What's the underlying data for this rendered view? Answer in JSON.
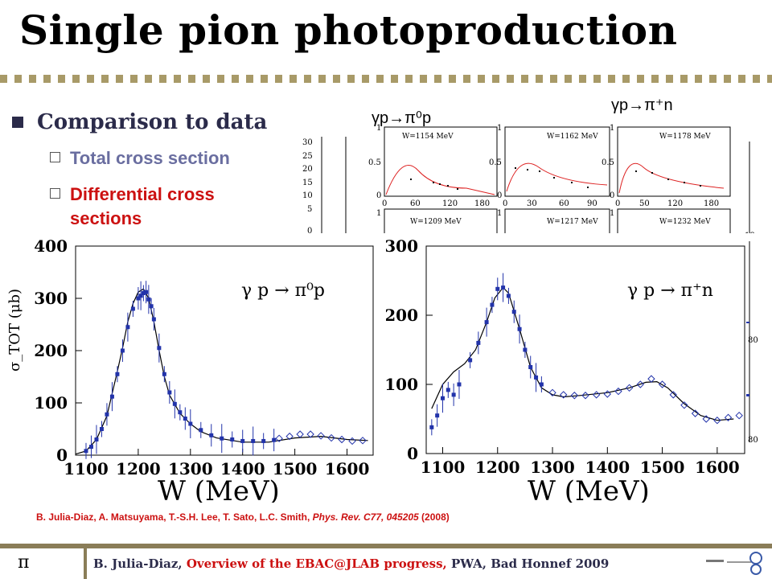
{
  "slide": {
    "title": "Single pion photoproduction",
    "bullet": "Comparison to data",
    "sub1": "Total cross section",
    "sub2_line1": "Differential cross",
    "sub2_line2": "sections",
    "inset_label_left": "γp→π⁰p",
    "inset_label_right": "γp→π⁺n",
    "citation_authors": "B. Julia-Diaz, A. Matsuyama, T.-S.H. Lee, T. Sato, L.C. Smith, ",
    "citation_journal": "Phys. Rev. C77, 045205",
    "citation_year": " (2008)",
    "footer_symbol": "π",
    "footer_author": "B. Julia-Diaz, ",
    "footer_talk": "Overview of the EBAC@JLAB progress, ",
    "footer_conf": "PWA, Bad Honnef 2009",
    "colors": {
      "data": "#2233aa",
      "accent": "#cc1111",
      "theory": "#000000",
      "band": "#8a7d58"
    }
  },
  "chart_data": [
    {
      "type": "scatter",
      "title": "",
      "reaction_label": "γ p → π⁰p",
      "xlabel": "W (MeV)",
      "ylabel": "σ_TOT (μb)",
      "xlim": [
        1080,
        1650
      ],
      "ylim": [
        0,
        400
      ],
      "xticks": [
        1100,
        1200,
        1300,
        1400,
        1500,
        1600
      ],
      "yticks": [
        0,
        100,
        200,
        300,
        400
      ],
      "series": [
        {
          "kind": "model_curve",
          "x": [
            1080,
            1100,
            1120,
            1140,
            1160,
            1170,
            1180,
            1190,
            1200,
            1210,
            1220,
            1230,
            1240,
            1250,
            1260,
            1280,
            1300,
            1320,
            1350,
            1400,
            1450,
            1500,
            1550,
            1600,
            1640
          ],
          "y": [
            2,
            8,
            30,
            75,
            160,
            205,
            255,
            290,
            312,
            318,
            300,
            255,
            200,
            150,
            115,
            80,
            60,
            45,
            33,
            25,
            25,
            33,
            36,
            30,
            28
          ]
        },
        {
          "kind": "data_points",
          "x": [
            1100,
            1110,
            1120,
            1130,
            1140,
            1150,
            1160,
            1170,
            1180,
            1190,
            1200,
            1205,
            1210,
            1215,
            1220,
            1225,
            1230,
            1240,
            1250,
            1260,
            1270,
            1280,
            1290,
            1300,
            1320,
            1340,
            1360,
            1380,
            1400,
            1420,
            1440,
            1460
          ],
          "y": [
            8,
            16,
            30,
            50,
            78,
            112,
            155,
            200,
            245,
            280,
            300,
            305,
            310,
            312,
            298,
            285,
            260,
            205,
            155,
            120,
            98,
            82,
            70,
            60,
            48,
            38,
            32,
            30,
            27,
            27,
            27,
            29
          ]
        },
        {
          "kind": "data_open_diamonds",
          "x": [
            1470,
            1490,
            1510,
            1530,
            1550,
            1570,
            1590,
            1610,
            1630
          ],
          "y": [
            32,
            36,
            40,
            40,
            37,
            33,
            30,
            27,
            28
          ]
        }
      ]
    },
    {
      "type": "scatter",
      "title": "",
      "reaction_label": "γ p → π⁺n",
      "xlabel": "W (MeV)",
      "ylabel": "",
      "xlim": [
        1070,
        1650
      ],
      "ylim": [
        0,
        300
      ],
      "xticks": [
        1100,
        1200,
        1300,
        1400,
        1500,
        1600
      ],
      "yticks": [
        0,
        100,
        200,
        300
      ],
      "series": [
        {
          "kind": "model_curve",
          "x": [
            1080,
            1100,
            1120,
            1140,
            1160,
            1180,
            1195,
            1210,
            1220,
            1240,
            1260,
            1280,
            1300,
            1320,
            1350,
            1400,
            1440,
            1470,
            1490,
            1510,
            1540,
            1570,
            1600,
            1630
          ],
          "y": [
            65,
            100,
            118,
            130,
            150,
            190,
            225,
            240,
            232,
            180,
            125,
            95,
            85,
            82,
            84,
            88,
            95,
            103,
            104,
            95,
            72,
            55,
            48,
            50
          ]
        },
        {
          "kind": "data_points",
          "x": [
            1080,
            1090,
            1100,
            1110,
            1120,
            1130,
            1150,
            1165,
            1180,
            1190,
            1200,
            1210,
            1220,
            1230,
            1240,
            1250,
            1260,
            1270,
            1280
          ],
          "y": [
            38,
            55,
            80,
            92,
            85,
            100,
            135,
            160,
            190,
            215,
            238,
            240,
            228,
            205,
            180,
            150,
            125,
            110,
            100
          ]
        },
        {
          "kind": "data_open_diamonds",
          "x": [
            1300,
            1320,
            1340,
            1360,
            1380,
            1400,
            1420,
            1440,
            1460,
            1480,
            1500,
            1520,
            1540,
            1560,
            1580,
            1600,
            1620,
            1640
          ],
          "y": [
            88,
            85,
            84,
            84,
            85,
            86,
            90,
            95,
            100,
            108,
            100,
            85,
            70,
            58,
            50,
            48,
            52,
            55
          ]
        }
      ]
    }
  ]
}
